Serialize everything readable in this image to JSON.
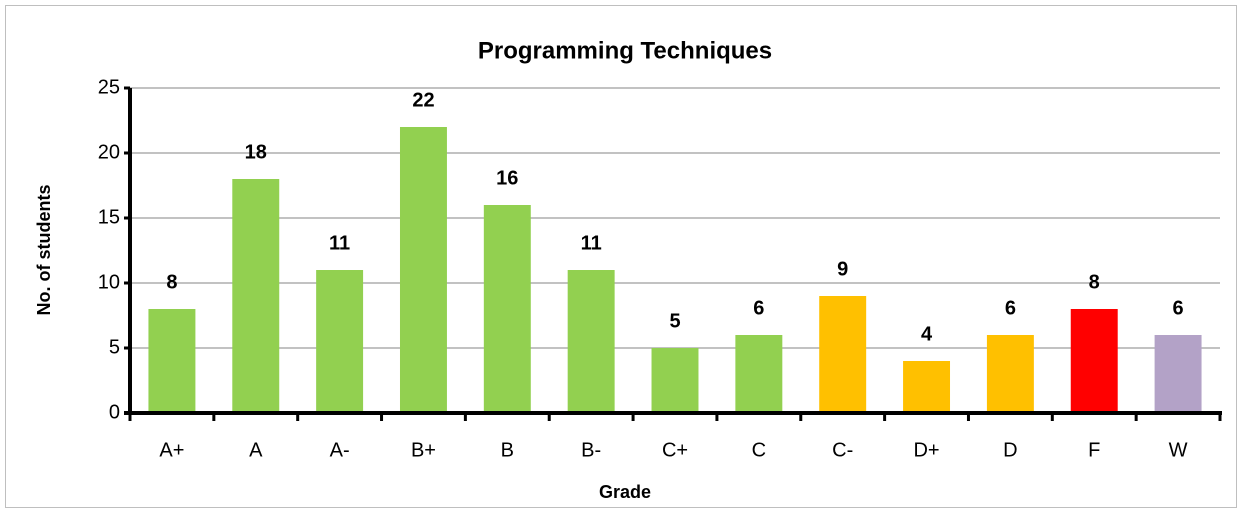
{
  "chart_data": {
    "type": "bar",
    "title": "Programming Techniques",
    "x_label": "Grade",
    "y_label": "No. of students",
    "categories": [
      "A+",
      "A",
      "A-",
      "B+",
      "B",
      "B-",
      "C+",
      "C",
      "C-",
      "D+",
      "D",
      "F",
      "W"
    ],
    "values": [
      8,
      18,
      11,
      22,
      16,
      11,
      5,
      6,
      9,
      4,
      6,
      8,
      6
    ],
    "colors": [
      "#92d050",
      "#92d050",
      "#92d050",
      "#92d050",
      "#92d050",
      "#92d050",
      "#92d050",
      "#92d050",
      "#ffc000",
      "#ffc000",
      "#ffc000",
      "#ff0000",
      "#b3a2c7"
    ],
    "ylim": [
      0,
      25
    ],
    "yticks": [
      0,
      5,
      10,
      15,
      20,
      25
    ],
    "grid": true
  }
}
